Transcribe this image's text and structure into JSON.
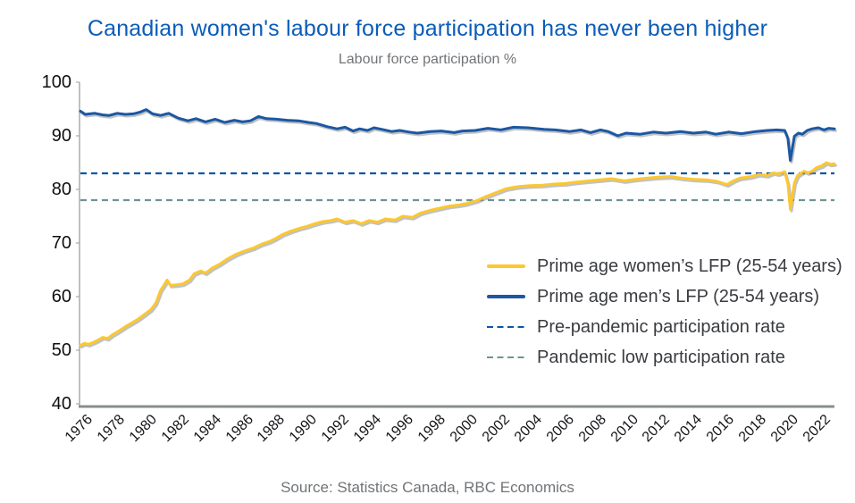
{
  "header": {
    "title": "Canadian women's labour force participation has never been higher",
    "subtitle": "Labour force participation %",
    "title_color": "#0B5CB8",
    "muted_text_color": "#717477"
  },
  "footer": {
    "source": "Source: Statistics Canada, RBC Economics"
  },
  "colors": {
    "women_line": "#FDC72E",
    "men_line": "#1C57A3",
    "pre_pandemic_dash": "#0D55A4",
    "pandemic_low_dash": "#6F9394",
    "axis_left": "#A9ABAE",
    "axis_bottom": "#898C8F",
    "tick_text": "#141619",
    "shadow": "rgba(140,143,146,0.55)"
  },
  "chart_data": {
    "type": "line",
    "title": "Canadian women's labour force participation has never been higher",
    "ylabel": "Labour force participation %",
    "xlabel": "",
    "x_range": [
      1976,
      2023
    ],
    "ylim": [
      40,
      100
    ],
    "grid": false,
    "legend_position": "inside-right",
    "yticks": [
      100,
      90,
      80,
      70,
      60,
      50,
      40
    ],
    "xticks": [
      1976,
      1978,
      1980,
      1982,
      1984,
      1986,
      1988,
      1990,
      1992,
      1994,
      1996,
      1998,
      2000,
      2002,
      2004,
      2006,
      2008,
      2010,
      2012,
      2014,
      2016,
      2018,
      2020,
      2022
    ],
    "series": [
      {
        "name": "Prime age women’s LFP (25-54 years)",
        "style": "solid",
        "color": "#FDC72E",
        "points": [
          [
            1976.0,
            50.9
          ],
          [
            1976.25,
            51.3
          ],
          [
            1976.5,
            51.1
          ],
          [
            1976.75,
            51.4
          ],
          [
            1977.1,
            51.9
          ],
          [
            1977.4,
            52.4
          ],
          [
            1977.7,
            52.2
          ],
          [
            1978.0,
            52.9
          ],
          [
            1978.4,
            53.6
          ],
          [
            1978.8,
            54.4
          ],
          [
            1979.2,
            55.1
          ],
          [
            1979.6,
            55.8
          ],
          [
            1980.0,
            56.7
          ],
          [
            1980.4,
            57.6
          ],
          [
            1980.7,
            58.8
          ],
          [
            1981.0,
            61.2
          ],
          [
            1981.2,
            62.1
          ],
          [
            1981.4,
            63.1
          ],
          [
            1981.6,
            62.1
          ],
          [
            1982.0,
            62.2
          ],
          [
            1982.4,
            62.4
          ],
          [
            1982.8,
            63.1
          ],
          [
            1983.1,
            64.3
          ],
          [
            1983.5,
            64.8
          ],
          [
            1983.8,
            64.4
          ],
          [
            1984.2,
            65.3
          ],
          [
            1984.7,
            66.1
          ],
          [
            1985.2,
            67.1
          ],
          [
            1985.7,
            67.9
          ],
          [
            1986.2,
            68.5
          ],
          [
            1986.8,
            69.1
          ],
          [
            1987.3,
            69.8
          ],
          [
            1987.8,
            70.3
          ],
          [
            1988.2,
            70.9
          ],
          [
            1988.6,
            71.6
          ],
          [
            1989.1,
            72.2
          ],
          [
            1989.6,
            72.7
          ],
          [
            1990.1,
            73.1
          ],
          [
            1990.6,
            73.6
          ],
          [
            1991.1,
            74.0
          ],
          [
            1991.6,
            74.2
          ],
          [
            1992.0,
            74.5
          ],
          [
            1992.5,
            73.9
          ],
          [
            1993.0,
            74.2
          ],
          [
            1993.5,
            73.6
          ],
          [
            1994.0,
            74.2
          ],
          [
            1994.5,
            73.9
          ],
          [
            1995.0,
            74.5
          ],
          [
            1995.6,
            74.3
          ],
          [
            1996.1,
            75.0
          ],
          [
            1996.7,
            74.8
          ],
          [
            1997.2,
            75.6
          ],
          [
            1997.8,
            76.1
          ],
          [
            1998.4,
            76.5
          ],
          [
            1999.0,
            76.9
          ],
          [
            1999.6,
            77.1
          ],
          [
            2000.1,
            77.4
          ],
          [
            2000.7,
            77.9
          ],
          [
            2001.3,
            78.7
          ],
          [
            2001.9,
            79.4
          ],
          [
            2002.5,
            80.1
          ],
          [
            2003.2,
            80.5
          ],
          [
            2004.0,
            80.7
          ],
          [
            2004.8,
            80.8
          ],
          [
            2005.5,
            81.0
          ],
          [
            2006.2,
            81.1
          ],
          [
            2007.0,
            81.4
          ],
          [
            2007.7,
            81.6
          ],
          [
            2008.4,
            81.8
          ],
          [
            2009.1,
            82.0
          ],
          [
            2009.9,
            81.6
          ],
          [
            2010.6,
            81.9
          ],
          [
            2011.3,
            82.1
          ],
          [
            2012.0,
            82.3
          ],
          [
            2012.8,
            82.4
          ],
          [
            2013.5,
            82.1
          ],
          [
            2014.2,
            81.9
          ],
          [
            2015.0,
            81.8
          ],
          [
            2015.7,
            81.5
          ],
          [
            2016.3,
            80.9
          ],
          [
            2016.7,
            81.6
          ],
          [
            2017.1,
            82.1
          ],
          [
            2017.8,
            82.4
          ],
          [
            2018.3,
            82.8
          ],
          [
            2018.8,
            82.6
          ],
          [
            2019.2,
            83.1
          ],
          [
            2019.5,
            82.9
          ],
          [
            2019.9,
            83.3
          ],
          [
            2020.1,
            81.0
          ],
          [
            2020.25,
            76.3
          ],
          [
            2020.5,
            81.2
          ],
          [
            2020.7,
            82.6
          ],
          [
            2020.9,
            83.0
          ],
          [
            2021.1,
            83.4
          ],
          [
            2021.35,
            83.1
          ],
          [
            2021.6,
            83.4
          ],
          [
            2021.9,
            84.1
          ],
          [
            2022.2,
            84.4
          ],
          [
            2022.5,
            85.0
          ],
          [
            2022.75,
            84.7
          ],
          [
            2023.0,
            84.8
          ]
        ]
      },
      {
        "name": "Prime age men’s LFP (25-54 years)",
        "style": "solid",
        "color": "#1C57A3",
        "points": [
          [
            1976.0,
            94.6
          ],
          [
            1976.3,
            94.0
          ],
          [
            1976.9,
            94.2
          ],
          [
            1977.4,
            93.9
          ],
          [
            1977.8,
            93.8
          ],
          [
            1978.3,
            94.2
          ],
          [
            1978.8,
            94.0
          ],
          [
            1979.3,
            94.1
          ],
          [
            1979.7,
            94.4
          ],
          [
            1980.1,
            94.9
          ],
          [
            1980.5,
            94.1
          ],
          [
            1981.0,
            93.8
          ],
          [
            1981.5,
            94.2
          ],
          [
            1982.1,
            93.3
          ],
          [
            1982.7,
            92.8
          ],
          [
            1983.2,
            93.2
          ],
          [
            1983.8,
            92.6
          ],
          [
            1984.4,
            93.1
          ],
          [
            1985.0,
            92.5
          ],
          [
            1985.6,
            92.9
          ],
          [
            1986.1,
            92.6
          ],
          [
            1986.6,
            92.8
          ],
          [
            1987.1,
            93.6
          ],
          [
            1987.6,
            93.2
          ],
          [
            1988.2,
            93.1
          ],
          [
            1988.9,
            92.9
          ],
          [
            1989.6,
            92.8
          ],
          [
            1990.2,
            92.5
          ],
          [
            1990.7,
            92.3
          ],
          [
            1991.4,
            91.7
          ],
          [
            1992.0,
            91.3
          ],
          [
            1992.5,
            91.6
          ],
          [
            1993.0,
            90.9
          ],
          [
            1993.4,
            91.3
          ],
          [
            1993.9,
            91.0
          ],
          [
            1994.3,
            91.5
          ],
          [
            1994.8,
            91.2
          ],
          [
            1995.4,
            90.8
          ],
          [
            1995.9,
            91.0
          ],
          [
            1996.5,
            90.7
          ],
          [
            1997.0,
            90.5
          ],
          [
            1997.8,
            90.8
          ],
          [
            1998.5,
            90.9
          ],
          [
            1999.3,
            90.6
          ],
          [
            1999.8,
            90.9
          ],
          [
            2000.6,
            91.0
          ],
          [
            2001.4,
            91.4
          ],
          [
            2002.2,
            91.1
          ],
          [
            2003.0,
            91.6
          ],
          [
            2003.9,
            91.5
          ],
          [
            2004.9,
            91.2
          ],
          [
            2005.6,
            91.1
          ],
          [
            2006.5,
            90.8
          ],
          [
            2007.2,
            91.1
          ],
          [
            2007.8,
            90.6
          ],
          [
            2008.4,
            91.1
          ],
          [
            2008.9,
            90.8
          ],
          [
            2009.5,
            90.0
          ],
          [
            2010.0,
            90.5
          ],
          [
            2010.9,
            90.3
          ],
          [
            2011.7,
            90.7
          ],
          [
            2012.5,
            90.5
          ],
          [
            2013.4,
            90.8
          ],
          [
            2014.2,
            90.5
          ],
          [
            2015.0,
            90.7
          ],
          [
            2015.6,
            90.3
          ],
          [
            2016.4,
            90.7
          ],
          [
            2017.2,
            90.4
          ],
          [
            2018.1,
            90.8
          ],
          [
            2018.8,
            91.0
          ],
          [
            2019.4,
            91.1
          ],
          [
            2019.9,
            91.0
          ],
          [
            2020.1,
            89.5
          ],
          [
            2020.25,
            85.4
          ],
          [
            2020.5,
            89.9
          ],
          [
            2020.75,
            90.5
          ],
          [
            2021.0,
            90.3
          ],
          [
            2021.3,
            91.0
          ],
          [
            2021.6,
            91.3
          ],
          [
            2022.0,
            91.5
          ],
          [
            2022.35,
            91.1
          ],
          [
            2022.65,
            91.4
          ],
          [
            2023.0,
            91.3
          ]
        ]
      },
      {
        "name": "Pre-pandemic participation rate",
        "style": "dashed",
        "color": "#0D55A4",
        "value": 83.0
      },
      {
        "name": "Pandemic low participation rate",
        "style": "dashed",
        "color": "#6F9394",
        "value": 78.0
      }
    ]
  }
}
